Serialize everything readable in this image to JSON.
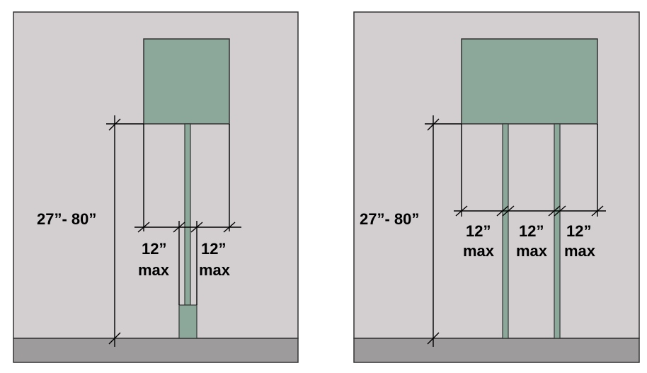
{
  "left_panel": {
    "height_label": "27”- 80”",
    "dim_left": "12”",
    "dim_left_max": "max",
    "dim_right": "12”",
    "dim_right_max": "max"
  },
  "right_panel": {
    "height_label": "27”- 80”",
    "dim_1": "12”",
    "dim_1_max": "max",
    "dim_2": "12”",
    "dim_2_max": "max",
    "dim_3": "12”",
    "dim_3_max": "max"
  },
  "colors": {
    "wall": "#d3cfd0",
    "floor": "#9e9b9c",
    "sign": "#8ca89a",
    "outline": "#333333"
  }
}
